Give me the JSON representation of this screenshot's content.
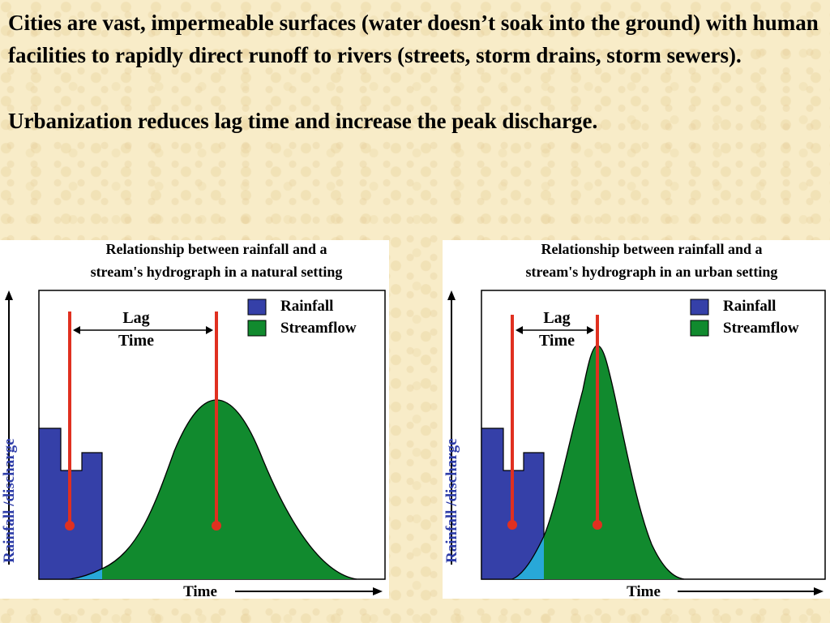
{
  "slide": {
    "paragraph1": "Cities are vast, impermeable surfaces (water doesn’t soak into the ground) with human facilities to rapidly direct runoff to rivers (streets, storm drains, storm sewers).",
    "paragraph2": "Urbanization reduces lag time and increase the peak discharge."
  },
  "colors": {
    "rainfall": "#3540a8",
    "streamflow": "#118a2e",
    "overlap": "#28a8d8",
    "lag_marker": "#e03020",
    "ylabel": "#2d3ca8"
  },
  "figures": [
    {
      "id": "natural",
      "title_line1": "Relationship between rainfall and a",
      "title_line2": "stream's hydrograph in a natural setting",
      "lag_label_line1": "Lag",
      "lag_label_line2": "Time",
      "legend_rainfall": "Rainfall",
      "legend_streamflow": "Streamflow",
      "xlabel": "Time",
      "ylabel": "Rainfall /discharge"
    },
    {
      "id": "urban",
      "title_line1": "Relationship between rainfall and a",
      "title_line2": "stream's hydrograph in an urban setting",
      "lag_label_line1": "Lag",
      "lag_label_line2": "Time",
      "legend_rainfall": "Rainfall",
      "legend_streamflow": "Streamflow",
      "xlabel": "Time",
      "ylabel": "Rainfall /discharge"
    }
  ]
}
